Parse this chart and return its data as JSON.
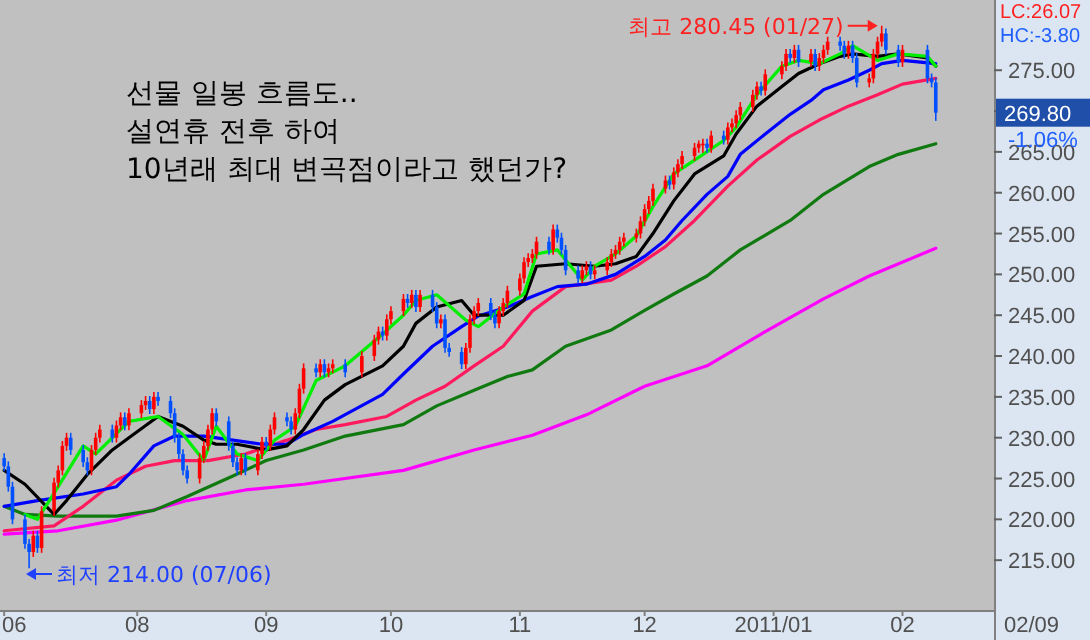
{
  "chart_data": {
    "type": "candlestick",
    "xlim": [
      "2010-06-29",
      "2011-02-23"
    ],
    "ylim": [
      208.9,
      283.6
    ],
    "xticks": [
      {
        "value": "2010-06-30",
        "label": "06"
      },
      {
        "value": "2010-08-01",
        "label": "08"
      },
      {
        "value": "2010-09-01",
        "label": "09"
      },
      {
        "value": "2010-10-01",
        "label": "10"
      },
      {
        "value": "2010-11-01",
        "label": "11"
      },
      {
        "value": "2010-12-01",
        "label": "12"
      },
      {
        "value": "2011-01-01",
        "label": "2011/01"
      },
      {
        "value": "2011-02-01",
        "label": "02"
      }
    ],
    "yticks": [
      {
        "value": 215,
        "label": "215.00"
      },
      {
        "value": 220,
        "label": "220.00"
      },
      {
        "value": 225,
        "label": "225.00"
      },
      {
        "value": 230,
        "label": "230.00"
      },
      {
        "value": 235,
        "label": "235.00"
      },
      {
        "value": 240,
        "label": "240.00"
      },
      {
        "value": 245,
        "label": "245.00"
      },
      {
        "value": 250,
        "label": "250.00"
      },
      {
        "value": 255,
        "label": "255.00"
      },
      {
        "value": 260,
        "label": "260.00"
      },
      {
        "value": 265,
        "label": "265.00"
      },
      {
        "value": 270,
        "label": null
      },
      {
        "value": 275,
        "label": "275.00"
      }
    ],
    "annotations": [
      "선물 일봉 흐름도..",
      "설연휴 전후 하여",
      "10년래 최대 변곡점이라고 했던가?",
      "최고 280.45 (01/27)",
      "최저 214.00 (07/06)",
      "269.80",
      "-1.06%",
      "HC:-3.80",
      "LC:26.07",
      "02/09"
    ],
    "series": [
      {
        "type": "line",
        "color": "#00ee00",
        "x": [
          "2010-07-05",
          "2010-07-08",
          "2010-07-13",
          "2010-07-19",
          "2010-07-22",
          "2010-07-27",
          "2010-07-30",
          "2010-08-06",
          "2010-08-12",
          "2010-08-17",
          "2010-08-20",
          "2010-08-25",
          "2010-08-30",
          "2010-09-03",
          "2010-09-08",
          "2010-09-13",
          "2010-09-20",
          "2010-09-29",
          "2010-10-04",
          "2010-10-07",
          "2010-10-12",
          "2010-10-19",
          "2010-10-22",
          "2010-10-28",
          "2010-11-02",
          "2010-11-05",
          "2010-11-10",
          "2010-11-16",
          "2010-11-19",
          "2010-11-24",
          "2010-11-29",
          "2010-12-03",
          "2010-12-08",
          "2010-12-13",
          "2010-12-20",
          "2010-12-23",
          "2010-12-28",
          "2011-01-03",
          "2011-01-07",
          "2011-01-12",
          "2011-01-17",
          "2011-01-20",
          "2011-01-26",
          "2011-01-31",
          "2011-02-07",
          "2011-02-09"
        ],
        "values": [
          220.6,
          220,
          224,
          229,
          228,
          230.5,
          232,
          232.6,
          230.4,
          227.2,
          231.4,
          228,
          227.2,
          229.7,
          231.4,
          237,
          238.8,
          242.7,
          245,
          246.8,
          247.5,
          244.4,
          243.6,
          246,
          247.6,
          252.5,
          253,
          249.3,
          251,
          252.5,
          254.7,
          258.3,
          262.3,
          264,
          266.4,
          268,
          272,
          275.5,
          276.2,
          275.8,
          277,
          278,
          276.2,
          277,
          276.7,
          275.5
        ]
      },
      {
        "type": "line",
        "color": "#000000",
        "x": [
          "2010-06-30",
          "2010-07-05",
          "2010-07-12",
          "2010-07-15",
          "2010-07-20",
          "2010-07-26",
          "2010-07-30",
          "2010-08-06",
          "2010-08-12",
          "2010-08-17",
          "2010-08-20",
          "2010-08-25",
          "2010-09-01",
          "2010-09-06",
          "2010-09-10",
          "2010-09-15",
          "2010-09-20",
          "2010-09-29",
          "2010-10-04",
          "2010-10-07",
          "2010-10-12",
          "2010-10-18",
          "2010-10-21",
          "2010-10-28",
          "2010-11-02",
          "2010-11-05",
          "2010-11-12",
          "2010-11-19",
          "2010-11-24",
          "2010-11-29",
          "2010-12-03",
          "2010-12-08",
          "2010-12-13",
          "2010-12-20",
          "2010-12-23",
          "2010-12-28",
          "2011-01-03",
          "2011-01-07",
          "2011-01-12",
          "2011-01-17",
          "2011-01-20",
          "2011-01-26",
          "2011-01-31",
          "2011-02-07",
          "2011-02-09"
        ],
        "values": [
          226,
          224.3,
          220.6,
          222.3,
          225.5,
          228.5,
          230,
          232.6,
          231.4,
          229.7,
          229.2,
          229.2,
          228.5,
          229,
          231,
          234.6,
          236.5,
          238.8,
          241.2,
          244,
          246,
          246.8,
          245,
          245,
          246.8,
          251,
          251.3,
          251,
          251.3,
          252.2,
          255,
          259,
          262.3,
          264.5,
          267.2,
          270.6,
          273,
          274.6,
          275.8,
          276.7,
          277,
          276.7,
          277,
          276.5,
          275.5
        ]
      },
      {
        "type": "line",
        "color": "#0000ff",
        "x": [
          "2010-06-30",
          "2010-07-08",
          "2010-07-19",
          "2010-07-27",
          "2010-07-30",
          "2010-08-05",
          "2010-08-10",
          "2010-08-17",
          "2010-08-24",
          "2010-08-31",
          "2010-09-06",
          "2010-09-10",
          "2010-09-17",
          "2010-09-29",
          "2010-10-04",
          "2010-10-11",
          "2010-10-18",
          "2010-10-22",
          "2010-10-29",
          "2010-11-04",
          "2010-11-10",
          "2010-11-17",
          "2010-11-24",
          "2010-12-01",
          "2010-12-06",
          "2010-12-10",
          "2010-12-16",
          "2010-12-21",
          "2010-12-24",
          "2010-12-30",
          "2011-01-05",
          "2011-01-10",
          "2011-01-13",
          "2011-01-19",
          "2011-01-24",
          "2011-01-27",
          "2011-02-01",
          "2011-02-09"
        ],
        "values": [
          221.6,
          222.3,
          223.1,
          224,
          225.5,
          229,
          230.2,
          230.2,
          229.7,
          229.2,
          229.2,
          230.4,
          232,
          235.3,
          237.8,
          241.2,
          243.6,
          244.9,
          246,
          247.3,
          248.5,
          248.8,
          250,
          252.2,
          254.2,
          256.6,
          259.8,
          262,
          264.7,
          267.2,
          269.6,
          271.3,
          272.6,
          273.8,
          275,
          275.8,
          276.2,
          275.8
        ]
      },
      {
        "type": "line",
        "color": "#ff1a5e",
        "x": [
          "2010-06-30",
          "2010-07-12",
          "2010-07-19",
          "2010-07-27",
          "2010-08-03",
          "2010-08-10",
          "2010-08-18",
          "2010-08-27",
          "2010-09-06",
          "2010-09-13",
          "2010-09-20",
          "2010-09-30",
          "2010-10-07",
          "2010-10-14",
          "2010-10-21",
          "2010-10-28",
          "2010-11-04",
          "2010-11-12",
          "2010-11-23",
          "2010-11-29",
          "2010-12-06",
          "2010-12-13",
          "2010-12-21",
          "2010-12-28",
          "2011-01-05",
          "2011-01-12",
          "2011-01-19",
          "2011-01-26",
          "2011-02-01",
          "2011-02-09"
        ],
        "values": [
          218.6,
          219.2,
          221.6,
          224.8,
          226.5,
          227.2,
          227.2,
          228,
          229.7,
          231,
          231.6,
          232.6,
          234.6,
          236.3,
          238.8,
          241.2,
          245.5,
          248.5,
          249.3,
          251,
          253.4,
          256.6,
          260.8,
          264,
          266.9,
          268.9,
          270.6,
          272,
          273.3,
          274
        ]
      },
      {
        "type": "line",
        "color": "#107a10",
        "x": [
          "2010-06-30",
          "2010-07-05",
          "2010-07-13",
          "2010-07-27",
          "2010-08-05",
          "2010-08-13",
          "2010-08-24",
          "2010-09-01",
          "2010-09-10",
          "2010-09-20",
          "2010-10-04",
          "2010-10-12",
          "2010-10-21",
          "2010-10-29",
          "2010-11-04",
          "2010-11-12",
          "2010-11-23",
          "2010-12-01",
          "2010-12-08",
          "2010-12-16",
          "2010-12-24",
          "2011-01-05",
          "2011-01-13",
          "2011-01-24",
          "2011-01-31",
          "2011-02-09"
        ],
        "values": [
          221.6,
          220.6,
          220.4,
          220.4,
          221.1,
          222.8,
          225.3,
          227.2,
          228.5,
          230.2,
          231.6,
          233.9,
          235.8,
          237.5,
          238.3,
          241.2,
          243.2,
          245.6,
          247.6,
          249.8,
          253,
          256.6,
          259.8,
          263.2,
          264.7,
          266
        ]
      },
      {
        "type": "line",
        "color": "#ff00ff",
        "x": [
          "2010-06-30",
          "2010-07-13",
          "2010-07-27",
          "2010-08-13",
          "2010-08-27",
          "2010-09-10",
          "2010-10-04",
          "2010-10-21",
          "2010-11-04",
          "2010-11-17",
          "2010-12-01",
          "2010-12-16",
          "2010-12-30",
          "2011-01-13",
          "2011-01-24",
          "2011-02-09"
        ],
        "values": [
          218.2,
          218.6,
          219.9,
          222.3,
          223.6,
          224.3,
          226,
          228.5,
          230.3,
          232.8,
          236.3,
          238.8,
          243,
          247,
          249.8,
          253.2
        ]
      },
      {
        "x": [
          "2010-06-30",
          "2010-07-01",
          "2010-07-02",
          "2010-07-05",
          "2010-07-06",
          "2010-07-07",
          "2010-07-08",
          "2010-07-09",
          "2010-07-12",
          "2010-07-13",
          "2010-07-14",
          "2010-07-15",
          "2010-07-16",
          "2010-07-19",
          "2010-07-20",
          "2010-07-21",
          "2010-07-22",
          "2010-07-23",
          "2010-07-26",
          "2010-07-27",
          "2010-07-28",
          "2010-07-29",
          "2010-07-30",
          "2010-08-02",
          "2010-08-03",
          "2010-08-04",
          "2010-08-05",
          "2010-08-06",
          "2010-08-09",
          "2010-08-10",
          "2010-08-11",
          "2010-08-12",
          "2010-08-13",
          "2010-08-16",
          "2010-08-17",
          "2010-08-18",
          "2010-08-19",
          "2010-08-20",
          "2010-08-23",
          "2010-08-24",
          "2010-08-25",
          "2010-08-26",
          "2010-08-27",
          "2010-08-30",
          "2010-08-31",
          "2010-09-01",
          "2010-09-02",
          "2010-09-03",
          "2010-09-06",
          "2010-09-07",
          "2010-09-08",
          "2010-09-09",
          "2010-09-10",
          "2010-09-13",
          "2010-09-14",
          "2010-09-15",
          "2010-09-16",
          "2010-09-17",
          "2010-09-20",
          "2010-09-24",
          "2010-09-27",
          "2010-09-28",
          "2010-09-29",
          "2010-09-30",
          "2010-10-01",
          "2010-10-04",
          "2010-10-05",
          "2010-10-06",
          "2010-10-07",
          "2010-10-08",
          "2010-10-11",
          "2010-10-12",
          "2010-10-13",
          "2010-10-14",
          "2010-10-15",
          "2010-10-18",
          "2010-10-19",
          "2010-10-20",
          "2010-10-21",
          "2010-10-22",
          "2010-10-25",
          "2010-10-26",
          "2010-10-27",
          "2010-10-28",
          "2010-10-29",
          "2010-11-01",
          "2010-11-02",
          "2010-11-03",
          "2010-11-04",
          "2010-11-05",
          "2010-11-08",
          "2010-11-09",
          "2010-11-10",
          "2010-11-11",
          "2010-11-12",
          "2010-11-15",
          "2010-11-16",
          "2010-11-17",
          "2010-11-18",
          "2010-11-19",
          "2010-11-22",
          "2010-11-23",
          "2010-11-24",
          "2010-11-25",
          "2010-11-26",
          "2010-11-29",
          "2010-11-30",
          "2010-12-01",
          "2010-12-02",
          "2010-12-03",
          "2010-12-06",
          "2010-12-07",
          "2010-12-08",
          "2010-12-09",
          "2010-12-10",
          "2010-12-13",
          "2010-12-14",
          "2010-12-15",
          "2010-12-16",
          "2010-12-17",
          "2010-12-20",
          "2010-12-21",
          "2010-12-22",
          "2010-12-23",
          "2010-12-24",
          "2010-12-27",
          "2010-12-28",
          "2010-12-29",
          "2010-12-30",
          "2011-01-03",
          "2011-01-04",
          "2011-01-05",
          "2011-01-06",
          "2011-01-07",
          "2011-01-10",
          "2011-01-11",
          "2011-01-12",
          "2011-01-13",
          "2011-01-14",
          "2011-01-17",
          "2011-01-18",
          "2011-01-19",
          "2011-01-20",
          "2011-01-21",
          "2011-01-24",
          "2011-01-25",
          "2011-01-26",
          "2011-01-27",
          "2011-01-28",
          "2011-01-31",
          "2011-02-01",
          "2011-02-07",
          "2011-02-08",
          "2011-02-09"
        ],
        "ohlc": [
          [
            227.5,
            228.1,
            225.9,
            226.5
          ],
          [
            226.5,
            227.1,
            223.4,
            224
          ],
          [
            224,
            224.6,
            219.4,
            220
          ],
          [
            220,
            220.6,
            216.4,
            217
          ],
          [
            217,
            217.6,
            214,
            216
          ],
          [
            216,
            218.6,
            215.4,
            218
          ],
          [
            218,
            218.6,
            215.9,
            216.5
          ],
          [
            216.5,
            221.6,
            215.9,
            221
          ],
          [
            221,
            225.1,
            220.4,
            224.5
          ],
          [
            224.5,
            226.6,
            223.9,
            226
          ],
          [
            226,
            229.6,
            225.4,
            229
          ],
          [
            229,
            230.6,
            228.4,
            230
          ],
          [
            230,
            230.6,
            227.9,
            228.5
          ],
          [
            228.5,
            229.1,
            226.4,
            227
          ],
          [
            227,
            227.6,
            225.4,
            226
          ],
          [
            226,
            229.1,
            225.4,
            228.5
          ],
          [
            228.5,
            230.6,
            227.9,
            230
          ],
          [
            230,
            231.6,
            229.4,
            231
          ],
          [
            231,
            231.6,
            229.4,
            230
          ],
          [
            230,
            232.1,
            229.4,
            231.5
          ],
          [
            231.5,
            233.1,
            230.9,
            232.5
          ],
          [
            232.5,
            233.1,
            230.9,
            231.5
          ],
          [
            231.5,
            233.6,
            230.9,
            233
          ],
          [
            233,
            234.6,
            232.4,
            234
          ],
          [
            234,
            235.1,
            233.4,
            234.5
          ],
          [
            234.5,
            235.1,
            232.9,
            233.5
          ],
          [
            233.5,
            235.6,
            232.9,
            235
          ],
          [
            235,
            235.6,
            233.9,
            234.5
          ],
          [
            234.5,
            235.1,
            232.4,
            233
          ],
          [
            233,
            233.6,
            229.4,
            230
          ],
          [
            230,
            230.6,
            227.4,
            228
          ],
          [
            228,
            228.6,
            225.4,
            226
          ],
          [
            226,
            226.6,
            224.4,
            225
          ],
          [
            225,
            228.1,
            224.4,
            227.5
          ],
          [
            227.5,
            229.6,
            226.9,
            229
          ],
          [
            229,
            231.6,
            228.4,
            231
          ],
          [
            231,
            233.6,
            230.4,
            233
          ],
          [
            233,
            233.6,
            231.4,
            232
          ],
          [
            232,
            232.6,
            228.4,
            229
          ],
          [
            229,
            229.6,
            226.4,
            227
          ],
          [
            227,
            227.6,
            225.4,
            226
          ],
          [
            226,
            228.1,
            225.4,
            227.5
          ],
          [
            227.5,
            228.1,
            225.4,
            226
          ],
          [
            226,
            228.6,
            225.4,
            228
          ],
          [
            228,
            230.1,
            227.4,
            229.5
          ],
          [
            229.5,
            230.1,
            228.4,
            229
          ],
          [
            229,
            231.6,
            228.4,
            231
          ],
          [
            231,
            233.1,
            230.4,
            232.5
          ],
          [
            232.5,
            233.1,
            231.4,
            232
          ],
          [
            232,
            232.6,
            230.4,
            231
          ],
          [
            231,
            233.6,
            230.4,
            233
          ],
          [
            233,
            236.6,
            232.4,
            236
          ],
          [
            236,
            239.1,
            235.4,
            238.5
          ],
          [
            238.5,
            239.1,
            237.4,
            238
          ],
          [
            238,
            239.6,
            237.4,
            239
          ],
          [
            239,
            239.6,
            237.4,
            238
          ],
          [
            238,
            239.1,
            237.4,
            238.5
          ],
          [
            238.5,
            239.6,
            237.9,
            239
          ],
          [
            239,
            239.6,
            237.4,
            238
          ],
          [
            238,
            240.6,
            237.4,
            240
          ],
          [
            240,
            242.6,
            239.4,
            242
          ],
          [
            242,
            243.6,
            241.4,
            243
          ],
          [
            243,
            243.6,
            241.9,
            242.5
          ],
          [
            242.5,
            245.1,
            241.9,
            244.5
          ],
          [
            244.5,
            246.1,
            243.9,
            245.5
          ],
          [
            245.5,
            247.6,
            244.9,
            247
          ],
          [
            247,
            247.6,
            245.9,
            246.5
          ],
          [
            246.5,
            248.1,
            245.9,
            247.5
          ],
          [
            247.5,
            248.1,
            245.4,
            246
          ],
          [
            246,
            248.1,
            245.4,
            247.5
          ],
          [
            247.5,
            248.1,
            245.4,
            246
          ],
          [
            246,
            246.6,
            243.4,
            244
          ],
          [
            244,
            245.1,
            243.4,
            244.5
          ],
          [
            244.5,
            245.1,
            240.4,
            241
          ],
          [
            241,
            241.6,
            239.9,
            240.5
          ],
          [
            240.5,
            241.1,
            238.4,
            239
          ],
          [
            239,
            241.6,
            238.4,
            241
          ],
          [
            241,
            245.1,
            240.4,
            244.5
          ],
          [
            244.5,
            246.1,
            243.9,
            245.5
          ],
          [
            245.5,
            247.1,
            244.9,
            246.5
          ],
          [
            246.5,
            247.1,
            244.4,
            245
          ],
          [
            245,
            245.6,
            243.4,
            244
          ],
          [
            244,
            246.1,
            243.4,
            245.5
          ],
          [
            245.5,
            247.1,
            244.9,
            246.5
          ],
          [
            246.5,
            248.6,
            245.9,
            248
          ],
          [
            248,
            250.1,
            247.4,
            249.5
          ],
          [
            249.5,
            252.1,
            248.9,
            251.5
          ],
          [
            251.5,
            252.6,
            250.9,
            252
          ],
          [
            252,
            253.1,
            251.4,
            252.5
          ],
          [
            252.5,
            254.6,
            251.9,
            254
          ],
          [
            254,
            254.6,
            252.4,
            253
          ],
          [
            253,
            256.1,
            252.4,
            255.5
          ],
          [
            255.5,
            256.1,
            253.9,
            254.5
          ],
          [
            254.5,
            255.1,
            252.4,
            253
          ],
          [
            253,
            253.6,
            249.9,
            250.5
          ],
          [
            250.5,
            251.1,
            248.9,
            249.5
          ],
          [
            249.5,
            251.1,
            248.9,
            250.5
          ],
          [
            250.5,
            251.6,
            249.9,
            251
          ],
          [
            251,
            251.6,
            249.4,
            250
          ],
          [
            250,
            251.1,
            249.4,
            250.5
          ],
          [
            250.5,
            252.1,
            249.9,
            251.5
          ],
          [
            251.5,
            253.1,
            250.9,
            252.5
          ],
          [
            252.5,
            253.6,
            251.9,
            253
          ],
          [
            253,
            254.6,
            252.4,
            254
          ],
          [
            254,
            255.1,
            253.4,
            254.5
          ],
          [
            254.5,
            255.6,
            253.9,
            255
          ],
          [
            255,
            257.1,
            254.4,
            256.5
          ],
          [
            256.5,
            258.6,
            255.9,
            258
          ],
          [
            258,
            259.6,
            257.4,
            259
          ],
          [
            259,
            261.1,
            258.4,
            260.5
          ],
          [
            260.5,
            262.1,
            259.9,
            261.5
          ],
          [
            261.5,
            262.1,
            260.4,
            261
          ],
          [
            261,
            263.1,
            260.4,
            262.5
          ],
          [
            262.5,
            264.1,
            261.9,
            263.5
          ],
          [
            263.5,
            265.1,
            262.9,
            264.5
          ],
          [
            264.5,
            266.1,
            263.9,
            265.5
          ],
          [
            265.5,
            266.4,
            264.9,
            266
          ],
          [
            266,
            266.6,
            264.9,
            266
          ],
          [
            266,
            266.6,
            264.9,
            265.5
          ],
          [
            265.5,
            267.6,
            264.9,
            267
          ],
          [
            267,
            267.6,
            265.9,
            266.5
          ],
          [
            266.5,
            268.6,
            265.9,
            268
          ],
          [
            268,
            269.1,
            267.4,
            268.5
          ],
          [
            268.5,
            270.1,
            267.9,
            269.5
          ],
          [
            269.5,
            271.1,
            268.9,
            270.5
          ],
          [
            270.5,
            272.6,
            269.9,
            272
          ],
          [
            272,
            273.6,
            271.4,
            273
          ],
          [
            273,
            273.6,
            271.9,
            272.5
          ],
          [
            272.5,
            275.1,
            271.9,
            274.5
          ],
          [
            274.5,
            276.1,
            273.9,
            275.5
          ],
          [
            275.5,
            277.6,
            274.9,
            277
          ],
          [
            277,
            277.6,
            275.9,
            276.5
          ],
          [
            276.5,
            278.1,
            275.9,
            277.5
          ],
          [
            277.5,
            278.1,
            275.4,
            276
          ],
          [
            276,
            277.6,
            275.4,
            277
          ],
          [
            277,
            277.6,
            274.9,
            275.5
          ],
          [
            275.5,
            277.1,
            274.9,
            276.5
          ],
          [
            276.5,
            278.1,
            275.9,
            277.5
          ],
          [
            277.5,
            279.1,
            276.9,
            278.5
          ],
          [
            278.5,
            279.1,
            277.4,
            278
          ],
          [
            278,
            278.6,
            276.4,
            277
          ],
          [
            277,
            278.6,
            276.4,
            278
          ],
          [
            278,
            278.6,
            275.9,
            276.5
          ],
          [
            276.5,
            277.1,
            272.9,
            273.5
          ],
          [
            273.5,
            274.6,
            272.9,
            274
          ],
          [
            274,
            277.6,
            273.4,
            277
          ],
          [
            277,
            279.1,
            276.4,
            278.5
          ],
          [
            278.5,
            280.45,
            277.9,
            279.5
          ],
          [
            279.5,
            280.1,
            276.9,
            277.5
          ],
          [
            277.5,
            278.1,
            275.4,
            276
          ],
          [
            276,
            278.1,
            275.4,
            277.5
          ],
          [
            277.5,
            278.1,
            273.4,
            274
          ],
          [
            274,
            274.6,
            272.9,
            273.5
          ],
          [
            273.5,
            274.1,
            268.8,
            269.8
          ]
        ],
        "colors": [
          "#0050ff",
          "#0050ff",
          "#0050ff",
          "#0050ff",
          "#0050ff",
          "#ff0000",
          "#0050ff",
          "#ff0000",
          "#ff0000",
          "#ff0000",
          "#ff0000",
          "#ff0000",
          "#0050ff",
          "#0050ff",
          "#0050ff",
          "#ff0000",
          "#ff0000",
          "#ff0000",
          "#0050ff",
          "#ff0000",
          "#ff0000",
          "#0050ff",
          "#ff0000",
          "#ff0000",
          "#ff0000",
          "#0050ff",
          "#ff0000",
          "#0050ff",
          "#0050ff",
          "#0050ff",
          "#0050ff",
          "#0050ff",
          "#0050ff",
          "#ff0000",
          "#ff0000",
          "#ff0000",
          "#ff0000",
          "#0050ff",
          "#0050ff",
          "#0050ff",
          "#0050ff",
          "#ff0000",
          "#0050ff",
          "#ff0000",
          "#ff0000",
          "#0050ff",
          "#ff0000",
          "#ff0000",
          "#0050ff",
          "#0050ff",
          "#ff0000",
          "#ff0000",
          "#ff0000",
          "#0050ff",
          "#ff0000",
          "#0050ff",
          "#ff0000",
          "#ff0000",
          "#0050ff",
          "#ff0000",
          "#ff0000",
          "#ff0000",
          "#0050ff",
          "#ff0000",
          "#ff0000",
          "#ff0000",
          "#0050ff",
          "#ff0000",
          "#0050ff",
          "#ff0000",
          "#0050ff",
          "#0050ff",
          "#ff0000",
          "#0050ff",
          "#0050ff",
          "#0050ff",
          "#ff0000",
          "#ff0000",
          "#ff0000",
          "#ff0000",
          "#0050ff",
          "#0050ff",
          "#ff0000",
          "#ff0000",
          "#ff0000",
          "#ff0000",
          "#ff0000",
          "#ff0000",
          "#ff0000",
          "#ff0000",
          "#0050ff",
          "#ff0000",
          "#0050ff",
          "#0050ff",
          "#0050ff",
          "#0050ff",
          "#ff0000",
          "#ff0000",
          "#0050ff",
          "#ff0000",
          "#ff0000",
          "#ff0000",
          "#ff0000",
          "#ff0000",
          "#ff0000",
          "#ff0000",
          "#ff0000",
          "#ff0000",
          "#ff0000",
          "#ff0000",
          "#ff0000",
          "#0050ff",
          "#ff0000",
          "#ff0000",
          "#ff0000",
          "#ff0000",
          "#ff0000",
          "#ff0000",
          "#0050ff",
          "#ff0000",
          "#0050ff",
          "#ff0000",
          "#ff0000",
          "#ff0000",
          "#ff0000",
          "#ff0000",
          "#ff0000",
          "#0050ff",
          "#ff0000",
          "#ff0000",
          "#ff0000",
          "#0050ff",
          "#ff0000",
          "#0050ff",
          "#ff0000",
          "#0050ff",
          "#ff0000",
          "#ff0000",
          "#ff0000",
          "#0050ff",
          "#0050ff",
          "#ff0000",
          "#0050ff",
          "#0050ff",
          "#ff0000",
          "#ff0000",
          "#ff0000",
          "#ff0000",
          "#0050ff",
          "#0050ff",
          "#ff0000",
          "#0050ff",
          "#0050ff",
          "#0050ff"
        ]
      }
    ]
  }
}
